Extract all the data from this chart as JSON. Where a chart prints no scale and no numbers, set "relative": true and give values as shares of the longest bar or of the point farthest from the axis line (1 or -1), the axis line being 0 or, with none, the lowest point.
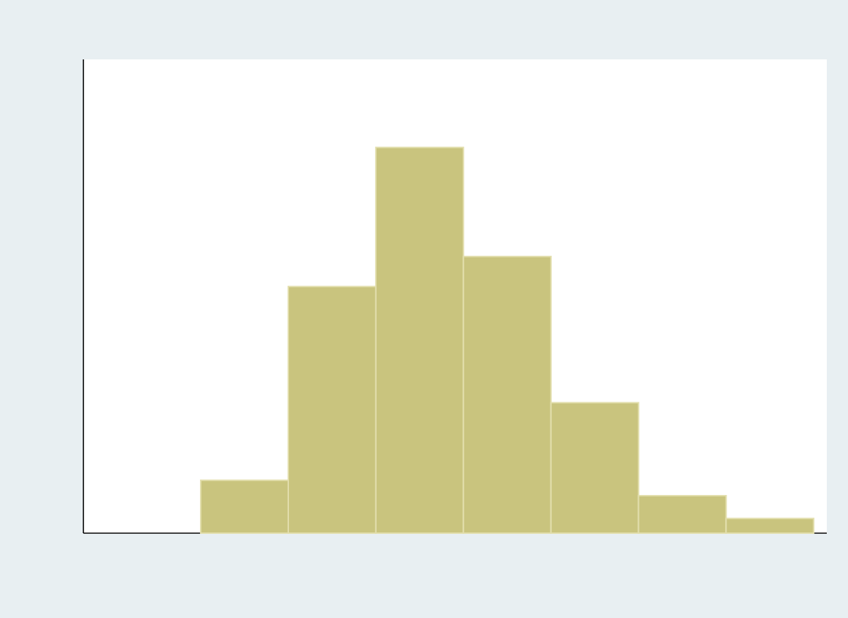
{
  "chart_data": {
    "type": "bar",
    "relative": true,
    "categories": [
      null,
      null,
      null,
      null,
      null,
      null,
      null
    ],
    "values": [
      0.137,
      0.639,
      1,
      0.717,
      0.338,
      0.097,
      0.038
    ],
    "color": "#c9c47e"
  }
}
